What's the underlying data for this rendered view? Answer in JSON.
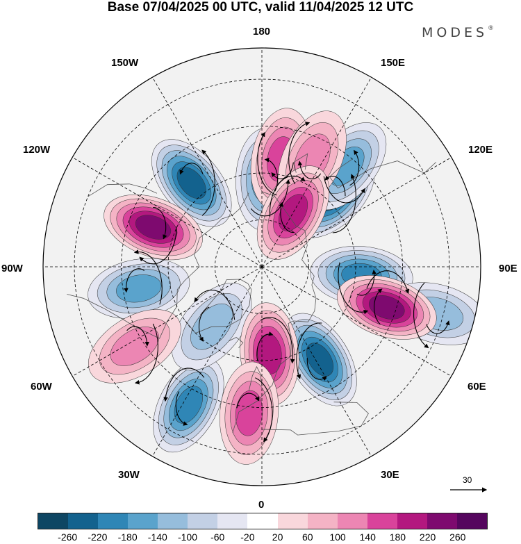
{
  "title": "Base 07/04/2025 00 UTC, valid 11/04/2025 12 UTC",
  "brand": "MODES",
  "brand_mark": "®",
  "map_labels": {
    "lon_180": "180",
    "lon_150w": "150W",
    "lon_150e": "150E",
    "lon_120w": "120W",
    "lon_120e": "120E",
    "lon_90w": "90W",
    "lon_90e": "90E",
    "lon_60w": "60W",
    "lon_60e": "60E",
    "lon_30w": "30W",
    "lon_30e": "30E",
    "lon_0": "0"
  },
  "reference_vector": "30",
  "colorbar": {
    "labels": [
      "-260",
      "-220",
      "-180",
      "-140",
      "-100",
      "-60",
      "-20",
      "20",
      "60",
      "100",
      "140",
      "180",
      "220",
      "260"
    ],
    "colors": [
      "#0e4663",
      "#13628e",
      "#2f86b6",
      "#5aa3cc",
      "#96bddc",
      "#c3d0e5",
      "#e5e6f2",
      "#ffffff",
      "#f9d7dc",
      "#f4b3c5",
      "#ec86b3",
      "#d9439b",
      "#b3187f",
      "#7e0a6f",
      "#55065e"
    ]
  },
  "anomaly_centers": [
    {
      "sign": "negative",
      "level": -260,
      "lon": 135,
      "lat": 58
    },
    {
      "sign": "negative",
      "level": -180,
      "lon": 178,
      "lat": 62
    },
    {
      "sign": "negative",
      "level": -180,
      "lon": 140,
      "lat": 48
    },
    {
      "sign": "negative",
      "level": -220,
      "lon": 85,
      "lat": 58
    },
    {
      "sign": "negative",
      "level": -140,
      "lon": 75,
      "lat": 32
    },
    {
      "sign": "negative",
      "level": -260,
      "lon": 32,
      "lat": 55
    },
    {
      "sign": "negative",
      "level": -220,
      "lon": -28,
      "lat": 40
    },
    {
      "sign": "negative",
      "level": -140,
      "lon": -40,
      "lat": 65
    },
    {
      "sign": "negative",
      "level": -180,
      "lon": -80,
      "lat": 50
    },
    {
      "sign": "negative",
      "level": -260,
      "lon": -140,
      "lat": 55
    },
    {
      "sign": "positive",
      "level": 180,
      "lon": 170,
      "lat": 55
    },
    {
      "sign": "positive",
      "level": 140,
      "lon": 155,
      "lat": 52
    },
    {
      "sign": "positive",
      "level": 220,
      "lon": 150,
      "lat": 70
    },
    {
      "sign": "positive",
      "level": 260,
      "lon": 72,
      "lat": 48
    },
    {
      "sign": "positive",
      "level": 220,
      "lon": 5,
      "lat": 62
    },
    {
      "sign": "positive",
      "level": 180,
      "lon": -5,
      "lat": 43
    },
    {
      "sign": "positive",
      "level": 140,
      "lon": -58,
      "lat": 42
    },
    {
      "sign": "positive",
      "level": 260,
      "lon": -110,
      "lat": 53
    }
  ]
}
